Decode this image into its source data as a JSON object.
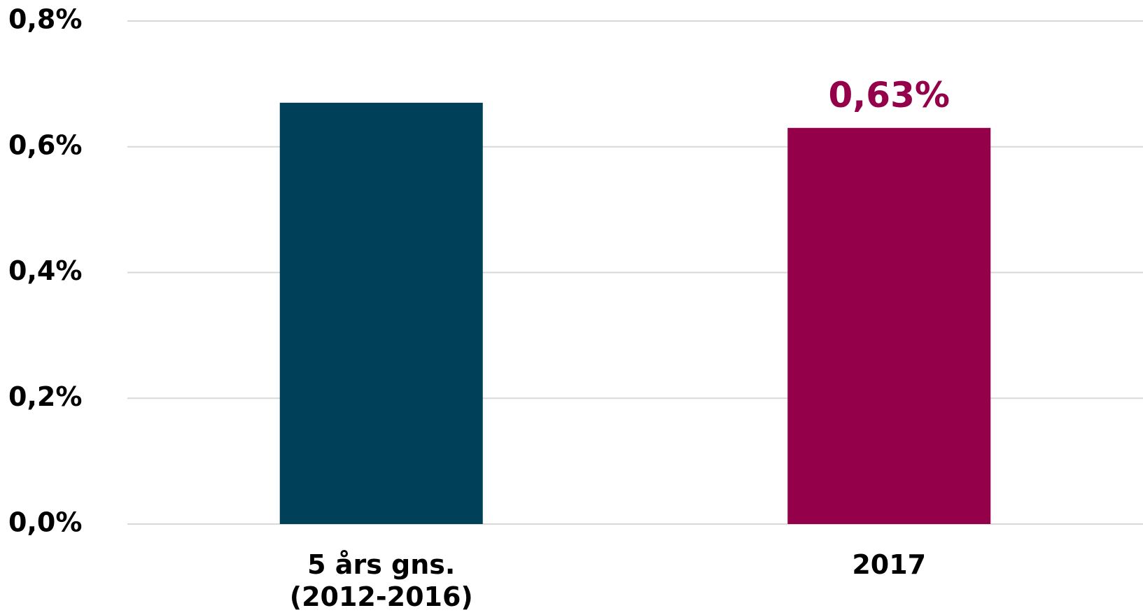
{
  "chart_data": {
    "type": "bar",
    "categories": [
      [
        "5 års gns.",
        "(2012-2016)"
      ],
      [
        "2017"
      ]
    ],
    "values": [
      0.67,
      0.63
    ],
    "colors": [
      "#004058",
      "#94004A"
    ],
    "data_labels": [
      "",
      "0,63%"
    ],
    "data_label_colors": [
      "#004058",
      "#94004A"
    ],
    "y_ticks": [
      "0,0%",
      "0,2%",
      "0,4%",
      "0,6%",
      "0,8%"
    ],
    "ylim": [
      0,
      0.8
    ],
    "grid": true,
    "gridline_color": "#d9d9d9",
    "title": "",
    "xlabel": "",
    "ylabel": ""
  }
}
